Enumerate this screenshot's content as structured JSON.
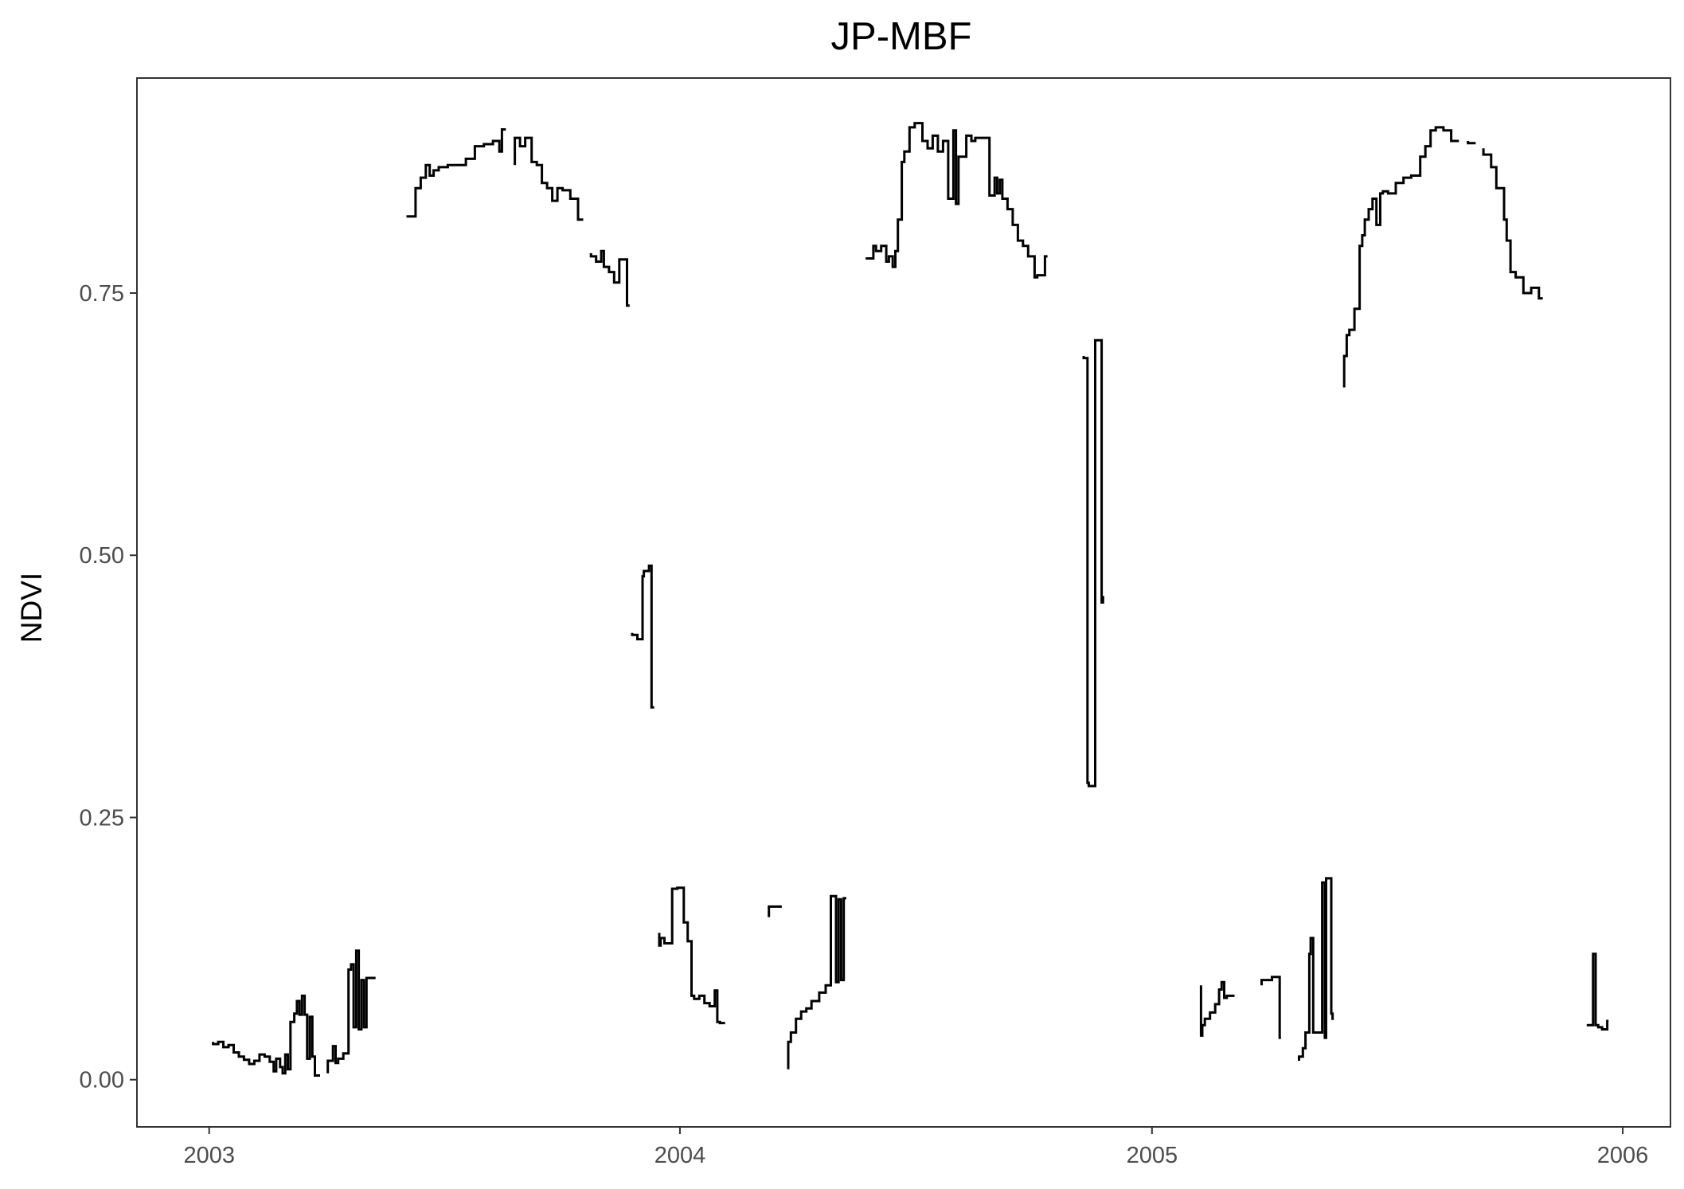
{
  "chart_data": {
    "type": "line",
    "title": "JP-MBF",
    "xlabel": "",
    "ylabel": "NDVI",
    "x_ticks": [
      "2003",
      "2004",
      "2005",
      "2006"
    ],
    "y_ticks": [
      "0.00",
      "0.25",
      "0.50",
      "0.75"
    ],
    "xlim": [
      "2002-11-06",
      "2006-02-07"
    ],
    "ylim": [
      -0.045,
      0.955
    ],
    "grid": false,
    "line_color": "#000000",
    "segments": [
      [
        [
          "2003-01-04",
          0.036
        ],
        [
          "2003-01-08",
          0.034
        ],
        [
          "2003-01-12",
          0.036
        ],
        [
          "2003-01-16",
          0.031
        ],
        [
          "2003-01-20",
          0.033
        ],
        [
          "2003-01-24",
          0.026
        ],
        [
          "2003-01-28",
          0.022
        ],
        [
          "2003-02-01",
          0.019
        ],
        [
          "2003-02-05",
          0.015
        ],
        [
          "2003-02-09",
          0.018
        ],
        [
          "2003-02-13",
          0.024
        ],
        [
          "2003-02-17",
          0.022
        ],
        [
          "2003-02-20",
          0.017
        ],
        [
          "2003-02-22",
          0.008
        ],
        [
          "2003-02-25",
          0.02
        ],
        [
          "2003-02-27",
          0.012
        ],
        [
          "2003-03-01",
          0.006
        ],
        [
          "2003-03-03",
          0.024
        ],
        [
          "2003-03-05",
          0.01
        ],
        [
          "2003-03-08",
          0.055
        ],
        [
          "2003-03-10",
          0.063
        ],
        [
          "2003-03-12",
          0.075
        ],
        [
          "2003-03-14",
          0.062
        ],
        [
          "2003-03-16",
          0.08
        ],
        [
          "2003-03-18",
          0.062
        ],
        [
          "2003-03-20",
          0.02
        ],
        [
          "2003-03-22",
          0.06
        ],
        [
          "2003-03-24",
          0.022
        ],
        [
          "2003-03-28",
          0.004
        ]
      ],
      [
        [
          "2003-04-03",
          0.006
        ],
        [
          "2003-04-07",
          0.018
        ],
        [
          "2003-04-09",
          0.032
        ],
        [
          "2003-04-11",
          0.016
        ],
        [
          "2003-04-15",
          0.02
        ],
        [
          "2003-04-19",
          0.025
        ],
        [
          "2003-04-21",
          0.105
        ],
        [
          "2003-04-23",
          0.11
        ],
        [
          "2003-04-25",
          0.05
        ],
        [
          "2003-04-27",
          0.123
        ],
        [
          "2003-04-29",
          0.048
        ],
        [
          "2003-05-01",
          0.095
        ],
        [
          "2003-05-03",
          0.05
        ],
        [
          "2003-05-05",
          0.097
        ],
        [
          "2003-05-10",
          0.097
        ]
      ],
      [
        [
          "2003-06-03",
          0.823
        ],
        [
          "2003-06-10",
          0.823
        ],
        [
          "2003-06-14",
          0.85
        ],
        [
          "2003-06-18",
          0.86
        ],
        [
          "2003-06-21",
          0.872
        ],
        [
          "2003-06-24",
          0.862
        ],
        [
          "2003-06-28",
          0.867
        ],
        [
          "2003-07-05",
          0.87
        ],
        [
          "2003-07-12",
          0.872
        ],
        [
          "2003-07-19",
          0.872
        ],
        [
          "2003-07-26",
          0.878
        ],
        [
          "2003-08-02",
          0.89
        ],
        [
          "2003-08-09",
          0.892
        ],
        [
          "2003-08-14",
          0.895
        ],
        [
          "2003-08-16",
          0.885
        ],
        [
          "2003-08-19",
          0.906
        ]
      ],
      [
        [
          "2003-08-26",
          0.872
        ],
        [
          "2003-08-30",
          0.898
        ],
        [
          "2003-09-03",
          0.89
        ],
        [
          "2003-09-08",
          0.898
        ],
        [
          "2003-09-12",
          0.875
        ],
        [
          "2003-09-16",
          0.872
        ],
        [
          "2003-09-20",
          0.855
        ],
        [
          "2003-09-24",
          0.85
        ],
        [
          "2003-09-28",
          0.838
        ],
        [
          "2003-10-02",
          0.85
        ],
        [
          "2003-10-08",
          0.848
        ],
        [
          "2003-10-14",
          0.84
        ],
        [
          "2003-10-18",
          0.82
        ]
      ],
      [
        [
          "2003-10-24",
          0.788
        ],
        [
          "2003-10-28",
          0.785
        ],
        [
          "2003-11-01",
          0.78
        ],
        [
          "2003-11-03",
          0.79
        ],
        [
          "2003-11-07",
          0.775
        ],
        [
          "2003-11-11",
          0.77
        ],
        [
          "2003-11-15",
          0.76
        ],
        [
          "2003-11-17",
          0.782
        ],
        [
          "2003-11-21",
          0.782
        ],
        [
          "2003-11-23",
          0.738
        ]
      ],
      [
        [
          "2003-11-25",
          0.426
        ],
        [
          "2003-11-29",
          0.424
        ],
        [
          "2003-12-03",
          0.42
        ],
        [
          "2003-12-04",
          0.48
        ],
        [
          "2003-12-08",
          0.485
        ],
        [
          "2003-12-10",
          0.49
        ],
        [
          "2003-12-12",
          0.355
        ]
      ],
      [
        [
          "2003-12-16",
          0.14
        ],
        [
          "2003-12-17",
          0.128
        ],
        [
          "2003-12-20",
          0.135
        ],
        [
          "2003-12-26",
          0.13
        ],
        [
          "2003-12-30",
          0.182
        ],
        [
          "2004-01-04",
          0.183
        ],
        [
          "2004-01-07",
          0.15
        ],
        [
          "2004-01-10",
          0.132
        ],
        [
          "2004-01-12",
          0.08
        ],
        [
          "2004-01-16",
          0.077
        ],
        [
          "2004-01-20",
          0.08
        ],
        [
          "2004-01-24",
          0.073
        ],
        [
          "2004-01-28",
          0.07
        ],
        [
          "2004-01-30",
          0.085
        ],
        [
          "2004-02-01",
          0.055
        ],
        [
          "2004-02-05",
          0.054
        ]
      ],
      [
        [
          "2004-03-10",
          0.155
        ],
        [
          "2004-03-20",
          0.165
        ]
      ],
      [
        [
          "2004-03-25",
          0.01
        ],
        [
          "2004-03-27",
          0.036
        ],
        [
          "2004-03-31",
          0.045
        ],
        [
          "2004-04-04",
          0.058
        ],
        [
          "2004-04-08",
          0.065
        ],
        [
          "2004-04-12",
          0.068
        ],
        [
          "2004-04-18",
          0.075
        ],
        [
          "2004-04-23",
          0.083
        ],
        [
          "2004-04-27",
          0.09
        ],
        [
          "2004-05-01",
          0.175
        ],
        [
          "2004-05-03",
          0.093
        ],
        [
          "2004-05-05",
          0.172
        ],
        [
          "2004-05-07",
          0.095
        ],
        [
          "2004-05-09",
          0.173
        ]
      ],
      [
        [
          "2004-05-24",
          0.783
        ],
        [
          "2004-05-30",
          0.783
        ],
        [
          "2004-06-01",
          0.795
        ],
        [
          "2004-06-05",
          0.79
        ],
        [
          "2004-06-09",
          0.795
        ],
        [
          "2004-06-11",
          0.78
        ],
        [
          "2004-06-14",
          0.785
        ],
        [
          "2004-06-16",
          0.775
        ],
        [
          "2004-06-18",
          0.79
        ],
        [
          "2004-06-21",
          0.82
        ],
        [
          "2004-06-23",
          0.875
        ],
        [
          "2004-06-27",
          0.885
        ],
        [
          "2004-07-01",
          0.908
        ],
        [
          "2004-07-07",
          0.912
        ],
        [
          "2004-07-11",
          0.895
        ],
        [
          "2004-07-15",
          0.888
        ],
        [
          "2004-07-19",
          0.9
        ],
        [
          "2004-07-23",
          0.885
        ],
        [
          "2004-07-27",
          0.895
        ],
        [
          "2004-07-31",
          0.84
        ],
        [
          "2004-08-02",
          0.905
        ],
        [
          "2004-08-04",
          0.835
        ],
        [
          "2004-08-06",
          0.88
        ],
        [
          "2004-08-10",
          0.88
        ],
        [
          "2004-08-14",
          0.9
        ],
        [
          "2004-08-17",
          0.895
        ],
        [
          "2004-08-21",
          0.898
        ],
        [
          "2004-08-28",
          0.898
        ],
        [
          "2004-09-01",
          0.843
        ],
        [
          "2004-09-03",
          0.86
        ],
        [
          "2004-09-05",
          0.845
        ],
        [
          "2004-09-07",
          0.858
        ],
        [
          "2004-09-11",
          0.84
        ],
        [
          "2004-09-15",
          0.83
        ],
        [
          "2004-09-19",
          0.815
        ],
        [
          "2004-09-23",
          0.8
        ],
        [
          "2004-09-27",
          0.795
        ],
        [
          "2004-10-02",
          0.785
        ],
        [
          "2004-10-04",
          0.765
        ],
        [
          "2004-10-10",
          0.767
        ],
        [
          "2004-10-12",
          0.785
        ]
      ],
      [
        [
          "2004-11-09",
          0.69
        ],
        [
          "2004-11-12",
          0.688
        ],
        [
          "2004-11-13",
          0.283
        ],
        [
          "2004-11-18",
          0.28
        ],
        [
          "2004-11-20",
          0.705
        ],
        [
          "2004-11-23",
          0.705
        ],
        [
          "2004-11-24",
          0.455
        ],
        [
          "2004-11-25",
          0.46
        ]
      ],
      [
        [
          "2005-02-08",
          0.09
        ],
        [
          "2005-02-09",
          0.042
        ],
        [
          "2005-02-11",
          0.052
        ],
        [
          "2005-02-15",
          0.058
        ],
        [
          "2005-02-19",
          0.064
        ],
        [
          "2005-02-22",
          0.072
        ],
        [
          "2005-02-24",
          0.086
        ],
        [
          "2005-02-26",
          0.093
        ],
        [
          "2005-02-28",
          0.078
        ],
        [
          "2005-03-06",
          0.08
        ]
      ],
      [
        [
          "2005-03-27",
          0.09
        ],
        [
          "2005-04-04",
          0.095
        ],
        [
          "2005-04-10",
          0.098
        ],
        [
          "2005-04-11",
          0.04
        ]
      ],
      [
        [
          "2005-04-25",
          0.018
        ],
        [
          "2005-04-28",
          0.022
        ],
        [
          "2005-04-30",
          0.03
        ],
        [
          "2005-05-03",
          0.045
        ],
        [
          "2005-05-04",
          0.12
        ],
        [
          "2005-05-06",
          0.135
        ],
        [
          "2005-05-07",
          0.045
        ],
        [
          "2005-05-13",
          0.045
        ],
        [
          "2005-05-15",
          0.188
        ],
        [
          "2005-05-16",
          0.04
        ],
        [
          "2005-05-20",
          0.192
        ],
        [
          "2005-05-21",
          0.063
        ],
        [
          "2005-05-22",
          0.058
        ]
      ],
      [
        [
          "2005-05-30",
          0.66
        ],
        [
          "2005-06-01",
          0.69
        ],
        [
          "2005-06-03",
          0.71
        ],
        [
          "2005-06-07",
          0.715
        ],
        [
          "2005-06-11",
          0.735
        ],
        [
          "2005-06-13",
          0.795
        ],
        [
          "2005-06-15",
          0.805
        ],
        [
          "2005-06-18",
          0.82
        ],
        [
          "2005-06-21",
          0.83
        ],
        [
          "2005-06-24",
          0.84
        ],
        [
          "2005-06-27",
          0.815
        ],
        [
          "2005-06-29",
          0.845
        ],
        [
          "2005-07-03",
          0.847
        ],
        [
          "2005-07-09",
          0.845
        ],
        [
          "2005-07-15",
          0.855
        ],
        [
          "2005-07-21",
          0.86
        ],
        [
          "2005-07-28",
          0.862
        ],
        [
          "2005-08-01",
          0.88
        ],
        [
          "2005-08-05",
          0.89
        ],
        [
          "2005-08-09",
          0.905
        ],
        [
          "2005-08-15",
          0.908
        ],
        [
          "2005-08-21",
          0.905
        ],
        [
          "2005-08-27",
          0.895
        ]
      ],
      [
        [
          "2005-09-03",
          0.895
        ],
        [
          "2005-09-09",
          0.893
        ]
      ],
      [
        [
          "2005-09-15",
          0.888
        ],
        [
          "2005-09-21",
          0.882
        ],
        [
          "2005-09-25",
          0.87
        ],
        [
          "2005-10-01",
          0.85
        ],
        [
          "2005-10-03",
          0.82
        ],
        [
          "2005-10-06",
          0.8
        ],
        [
          "2005-10-10",
          0.77
        ],
        [
          "2005-10-16",
          0.765
        ],
        [
          "2005-10-22",
          0.75
        ],
        [
          "2005-10-28",
          0.755
        ],
        [
          "2005-10-31",
          0.745
        ]
      ],
      [
        [
          "2005-12-05",
          0.053
        ],
        [
          "2005-12-09",
          0.052
        ],
        [
          "2005-12-11",
          0.12
        ],
        [
          "2005-12-13",
          0.052
        ],
        [
          "2005-12-16",
          0.05
        ],
        [
          "2005-12-20",
          0.048
        ],
        [
          "2005-12-21",
          0.056
        ]
      ]
    ]
  }
}
